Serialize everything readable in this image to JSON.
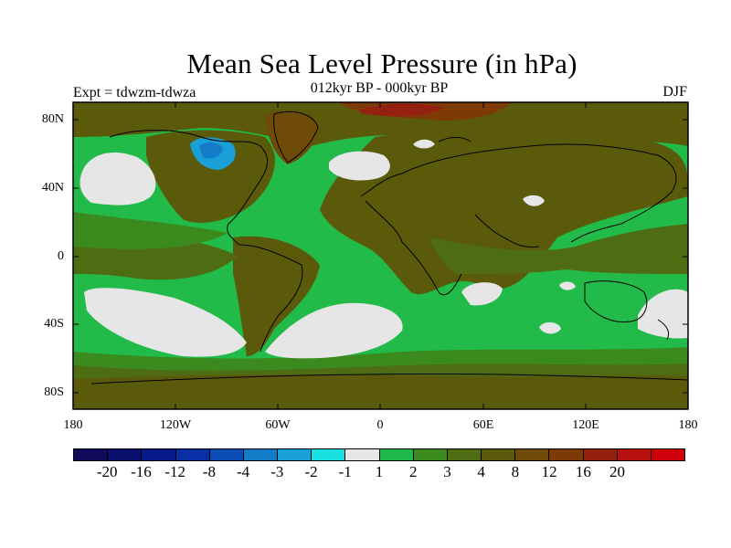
{
  "title": "Mean Sea Level Pressure (in hPa)",
  "subtitle": "012kyr BP - 000kyr BP",
  "experiment": "Expt = tdwzm-tdwza",
  "season": "DJF",
  "lat_labels": [
    "80N",
    "40N",
    "0",
    "40S",
    "80S"
  ],
  "lon_labels": [
    "180",
    "120W",
    "60W",
    "0",
    "60E",
    "120E",
    "180"
  ],
  "colorbar": {
    "colors": [
      "#120a5c",
      "#0a0f6e",
      "#061a8c",
      "#0a2ea4",
      "#0b4cb4",
      "#127cc8",
      "#1aa0d8",
      "#18e0e0",
      "#e6e6e6",
      "#1db84c",
      "#3b8a1e",
      "#4e6c12",
      "#5b5a0a",
      "#6e4b08",
      "#7e3a06",
      "#962010",
      "#b8100e",
      "#d0000a"
    ],
    "labels": [
      "-20",
      "-16",
      "-12",
      "-8",
      "-4",
      "-3",
      "-2",
      "-1",
      "1",
      "2",
      "3",
      "4",
      "8",
      "12",
      "16",
      "20"
    ]
  },
  "palette": {
    "ocean_green": "#22bb4a",
    "land_brown": "#5b5a0a",
    "olive": "#4e6c12",
    "dark_green": "#3b8a1e",
    "white": "#e6e6e6",
    "high_brown": "#6e4b08",
    "red_brown": "#7e3a06",
    "blue": "#127cc8",
    "cyan": "#1aa0d8"
  }
}
